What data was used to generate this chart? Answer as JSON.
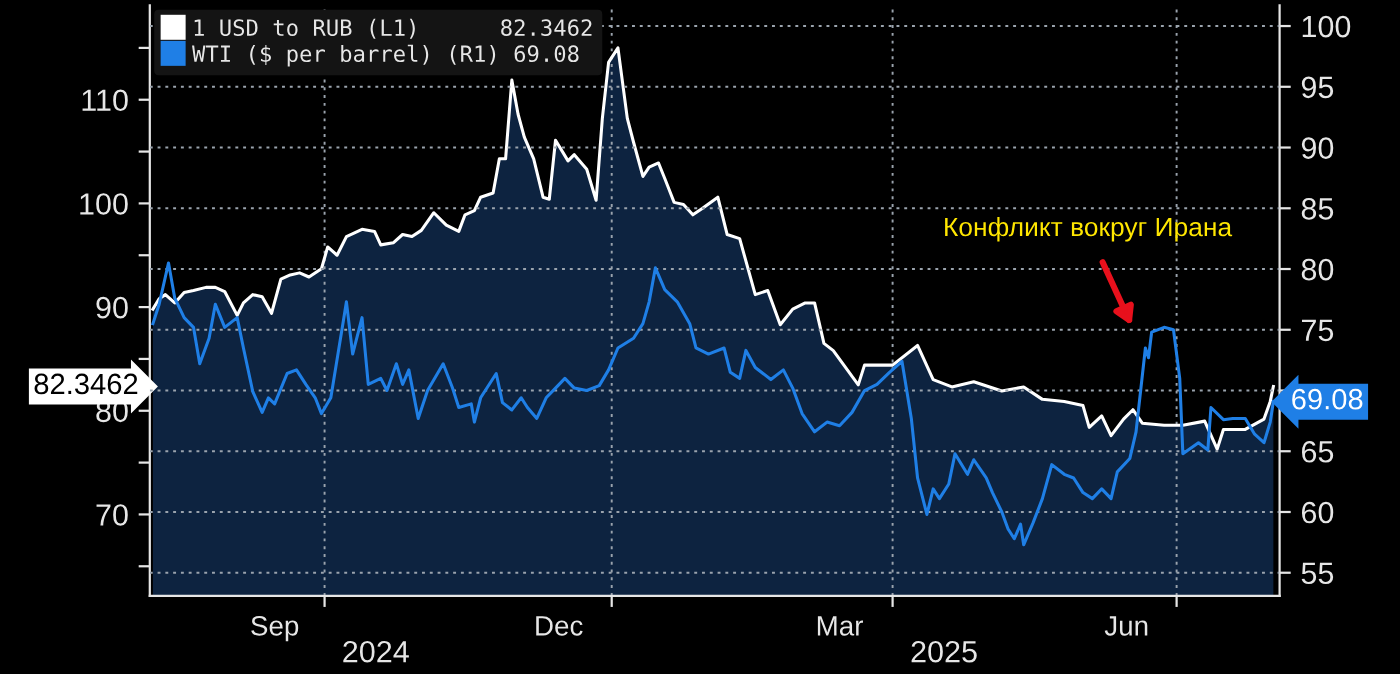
{
  "chart_data": {
    "type": "area",
    "xlim": [
      "2024-08-06",
      "2025-08-03"
    ],
    "xticks": [
      {
        "value": "2024-09-15",
        "label": "Sep"
      },
      {
        "value": "2024-10-01",
        "label": null
      },
      {
        "value": "2024-12-15",
        "label": "Dec"
      },
      {
        "value": "2025-01-01",
        "label": null
      },
      {
        "value": "2025-03-15",
        "label": "Mar"
      },
      {
        "value": "2025-04-01",
        "label": null
      },
      {
        "value": "2025-06-15",
        "label": "Jun"
      },
      {
        "value": "2025-07-01",
        "label": null
      }
    ],
    "ylim": [
      62.15,
      119.1
    ],
    "yticks": [
      {
        "value": 65,
        "label": null
      },
      70,
      {
        "value": 75,
        "label": null
      },
      80,
      {
        "value": 85,
        "label": null
      },
      90,
      {
        "value": 95,
        "label": null
      },
      100,
      {
        "value": 105,
        "label": null
      },
      110,
      {
        "value": 115,
        "label": null
      }
    ],
    "y2lim": [
      53.1,
      101.7
    ],
    "y2ticks": [
      55,
      60,
      65,
      {
        "value": 70,
        "label": null
      },
      75,
      80,
      85,
      90,
      95,
      100
    ],
    "grid": true,
    "legend": "top left",
    "series": [
      {
        "name": "1 USD to RUB (L1)      82.3462",
        "type": "area",
        "axis": "y",
        "color": "#ffffff",
        "x": [
          "2024-08-07",
          "2024-08-09",
          "2024-08-11",
          "2024-08-14",
          "2024-08-17",
          "2024-08-20",
          "2024-08-24",
          "2024-08-27",
          "2024-08-30",
          "2024-09-03",
          "2024-09-05",
          "2024-09-08",
          "2024-09-11",
          "2024-09-14",
          "2024-09-17",
          "2024-09-20",
          "2024-09-23",
          "2024-09-26",
          "2024-09-30",
          "2024-10-02",
          "2024-10-05",
          "2024-10-08",
          "2024-10-13",
          "2024-10-17",
          "2024-10-19",
          "2024-10-23",
          "2024-10-26",
          "2024-10-29",
          "2024-11-01",
          "2024-11-05",
          "2024-11-09",
          "2024-11-13",
          "2024-11-15",
          "2024-11-18",
          "2024-11-20",
          "2024-11-24",
          "2024-11-26",
          "2024-11-28",
          "2024-11-30",
          "2024-12-02",
          "2024-12-04",
          "2024-12-07",
          "2024-12-10",
          "2024-12-12",
          "2024-12-14",
          "2024-12-18",
          "2024-12-20",
          "2024-12-24",
          "2024-12-27",
          "2024-12-29",
          "2024-12-31",
          "2025-01-03",
          "2025-01-06",
          "2025-01-08",
          "2025-01-11",
          "2025-01-13",
          "2025-01-16",
          "2025-01-18",
          "2025-01-21",
          "2025-01-24",
          "2025-01-27",
          "2025-01-30",
          "2025-02-04",
          "2025-02-07",
          "2025-02-11",
          "2025-02-16",
          "2025-02-20",
          "2025-02-24",
          "2025-02-28",
          "2025-03-04",
          "2025-03-07",
          "2025-03-10",
          "2025-03-13",
          "2025-03-21",
          "2025-03-23",
          "2025-04-01",
          "2025-04-09",
          "2025-04-14",
          "2025-04-20",
          "2025-04-27",
          "2025-05-06",
          "2025-05-13",
          "2025-05-19",
          "2025-05-26",
          "2025-06-01",
          "2025-06-03",
          "2025-06-07",
          "2025-06-10",
          "2025-06-14",
          "2025-06-17",
          "2025-06-20",
          "2025-06-27",
          "2025-07-03",
          "2025-07-10",
          "2025-07-14",
          "2025-07-16",
          "2025-07-23",
          "2025-07-29",
          "2025-07-31",
          "2025-08-01"
        ],
        "values": [
          89.8,
          90.8,
          91.2,
          90.4,
          91.4,
          91.6,
          91.9,
          91.9,
          91.5,
          89.2,
          90.4,
          91.2,
          91.0,
          89.4,
          92.7,
          93.1,
          93.3,
          92.9,
          93.7,
          95.8,
          95.0,
          96.8,
          97.5,
          97.3,
          96.0,
          96.2,
          97.0,
          96.8,
          97.4,
          99.1,
          97.9,
          97.3,
          98.9,
          99.3,
          100.6,
          101.0,
          104.3,
          104.3,
          111.9,
          108.6,
          106.4,
          104.3,
          100.6,
          100.4,
          106.1,
          104.1,
          104.7,
          103.3,
          100.3,
          108.2,
          113.6,
          115.0,
          108.2,
          105.9,
          102.6,
          103.5,
          103.9,
          102.4,
          100.1,
          99.9,
          98.9,
          99.5,
          100.6,
          97.0,
          96.6,
          91.2,
          91.6,
          88.3,
          89.8,
          90.4,
          90.4,
          86.5,
          85.8,
          82.5,
          84.4,
          84.4,
          86.3,
          83.0,
          82.3,
          82.8,
          81.9,
          82.3,
          81.1,
          80.9,
          80.5,
          78.4,
          79.5,
          77.6,
          79.2,
          80.1,
          78.8,
          78.6,
          78.6,
          79.0,
          76.3,
          78.2,
          78.2,
          79.2,
          80.9,
          82.3462
        ]
      },
      {
        "name": "WTI ($ per barrel) (R1) 69.08",
        "type": "line",
        "axis": "y2",
        "color": "#1f7fe6",
        "x": [
          "2024-08-07",
          "2024-08-09",
          "2024-08-12",
          "2024-08-14",
          "2024-08-17",
          "2024-08-20",
          "2024-08-22",
          "2024-08-25",
          "2024-08-27",
          "2024-08-30",
          "2024-09-03",
          "2024-09-05",
          "2024-09-08",
          "2024-09-11",
          "2024-09-13",
          "2024-09-15",
          "2024-09-19",
          "2024-09-22",
          "2024-09-25",
          "2024-09-28",
          "2024-09-30",
          "2024-10-03",
          "2024-10-07",
          "2024-10-08",
          "2024-10-10",
          "2024-10-13",
          "2024-10-15",
          "2024-10-19",
          "2024-10-21",
          "2024-10-24",
          "2024-10-26",
          "2024-10-28",
          "2024-10-31",
          "2024-11-03",
          "2024-11-08",
          "2024-11-11",
          "2024-11-13",
          "2024-11-17",
          "2024-11-18",
          "2024-11-20",
          "2024-11-25",
          "2024-11-27",
          "2024-11-30",
          "2024-12-03",
          "2024-12-05",
          "2024-12-08",
          "2024-12-11",
          "2024-12-14",
          "2024-12-17",
          "2024-12-20",
          "2024-12-24",
          "2024-12-28",
          "2024-12-31",
          "2025-01-03",
          "2025-01-08",
          "2025-01-11",
          "2025-01-13",
          "2025-01-15",
          "2025-01-18",
          "2025-01-22",
          "2025-01-26",
          "2025-01-28",
          "2025-02-01",
          "2025-02-06",
          "2025-02-08",
          "2025-02-11",
          "2025-02-13",
          "2025-02-16",
          "2025-02-21",
          "2025-02-25",
          "2025-02-28",
          "2025-03-03",
          "2025-03-07",
          "2025-03-11",
          "2025-03-15",
          "2025-03-19",
          "2025-03-23",
          "2025-03-27",
          "2025-03-31",
          "2025-04-04",
          "2025-04-07",
          "2025-04-09",
          "2025-04-11",
          "2025-04-12",
          "2025-04-14",
          "2025-04-16",
          "2025-04-19",
          "2025-04-21",
          "2025-04-25",
          "2025-04-27",
          "2025-05-01",
          "2025-05-03",
          "2025-05-06",
          "2025-05-08",
          "2025-05-10",
          "2025-05-12",
          "2025-05-13",
          "2025-05-16",
          "2025-05-19",
          "2025-05-22",
          "2025-05-26",
          "2025-05-29",
          "2025-06-01",
          "2025-06-04",
          "2025-06-07",
          "2025-06-10",
          "2025-06-12",
          "2025-06-16",
          "2025-06-18",
          "2025-06-21",
          "2025-06-22",
          "2025-06-23",
          "2025-06-27",
          "2025-06-30",
          "2025-07-02",
          "2025-07-03",
          "2025-07-08",
          "2025-07-11",
          "2025-07-12",
          "2025-07-16",
          "2025-07-19",
          "2025-07-23",
          "2025-07-26",
          "2025-07-29",
          "2025-07-31",
          "2025-08-01"
        ],
        "values": [
          75.5,
          77.1,
          80.5,
          77.6,
          76.0,
          75.2,
          72.2,
          74.3,
          77.1,
          75.2,
          76.0,
          73.5,
          69.9,
          68.2,
          69.4,
          68.9,
          71.4,
          71.7,
          70.5,
          69.4,
          68.1,
          69.4,
          75.7,
          77.3,
          73.0,
          76.0,
          70.5,
          71.0,
          70.0,
          72.2,
          70.5,
          71.7,
          67.7,
          70.0,
          72.2,
          70.2,
          68.6,
          68.9,
          67.4,
          69.4,
          71.4,
          69.0,
          68.4,
          69.4,
          68.6,
          67.7,
          69.4,
          70.2,
          71.0,
          70.2,
          70.0,
          70.4,
          71.7,
          73.5,
          74.3,
          75.5,
          77.3,
          80.1,
          78.3,
          77.3,
          75.5,
          73.5,
          73.0,
          73.5,
          71.5,
          71.0,
          73.3,
          71.9,
          70.9,
          71.7,
          70.2,
          68.1,
          66.6,
          67.4,
          67.1,
          68.2,
          70.0,
          70.5,
          71.5,
          72.4,
          67.7,
          62.8,
          60.8,
          59.8,
          61.9,
          61.1,
          62.3,
          64.8,
          63.1,
          64.3,
          62.8,
          61.6,
          60.0,
          58.6,
          57.8,
          59.0,
          57.3,
          59.1,
          61.1,
          63.9,
          63.1,
          62.8,
          61.6,
          61.1,
          61.9,
          61.1,
          63.3,
          64.4,
          66.6,
          73.5,
          72.7,
          74.8,
          75.2,
          75.0,
          71.0,
          64.8,
          65.7,
          65.1,
          68.6,
          67.6,
          67.7,
          67.7,
          66.4,
          65.7,
          67.4,
          69.08
        ]
      }
    ],
    "annotations": [
      "Конфликт вокруг Ирана",
      "2024",
      "2025",
      "82.3462",
      "69.08"
    ]
  }
}
